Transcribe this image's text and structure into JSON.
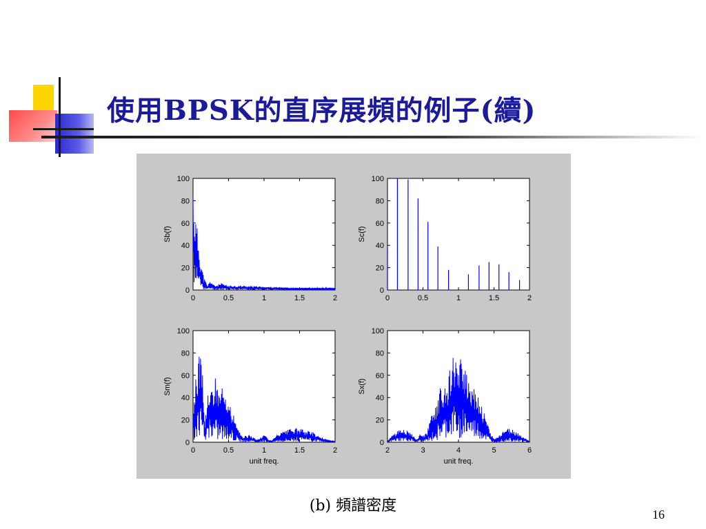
{
  "slide": {
    "title": "使用BPSK的直序展頻的例子(續)",
    "caption": "(b) 頻譜密度",
    "page_number": "16"
  },
  "colors": {
    "title": "#1a1a9a",
    "series": "#0000ff",
    "figure_background": "#c8c8c8",
    "deco_yellow": "#ffd500",
    "deco_red": "#ff5a5a",
    "deco_blue": "#3a3ad8"
  },
  "chart_data": [
    {
      "type": "line",
      "ylabel": "Sb(f)",
      "xlabel": "",
      "xlim": [
        0,
        2
      ],
      "ylim": [
        0,
        100
      ],
      "xticks": [
        "0",
        "0.5",
        "1",
        "1.5",
        "2"
      ],
      "yticks": [
        "0",
        "20",
        "40",
        "60",
        "80",
        "100"
      ],
      "envelope": {
        "x": [
          0,
          0.02,
          0.05,
          0.08,
          0.1,
          0.15,
          0.2,
          0.25,
          0.3,
          0.4,
          0.5,
          0.7,
          1.0,
          1.5,
          2.0
        ],
        "y": [
          100,
          72,
          60,
          45,
          30,
          12,
          4,
          9,
          4,
          6,
          4,
          4,
          3,
          2,
          2
        ]
      }
    },
    {
      "type": "bar",
      "ylabel": "Sc(f)",
      "xlabel": "",
      "xlim": [
        0,
        2
      ],
      "ylim": [
        0,
        100
      ],
      "xticks": [
        "0",
        "0.5",
        "1",
        "1.5",
        "2"
      ],
      "yticks": [
        "0",
        "20",
        "40",
        "60",
        "80",
        "100"
      ],
      "x": [
        0,
        0.14,
        0.29,
        0.43,
        0.57,
        0.71,
        0.86,
        1.0,
        1.14,
        1.29,
        1.43,
        1.57,
        1.71,
        1.86
      ],
      "values": [
        38,
        100,
        99,
        82,
        61,
        39,
        18,
        1,
        14,
        22,
        25,
        23,
        16,
        9
      ]
    },
    {
      "type": "line",
      "ylabel": "Sm(f)",
      "xlabel": "unit freq.",
      "xlim": [
        0,
        2
      ],
      "ylim": [
        0,
        100
      ],
      "xticks": [
        "0",
        "0.5",
        "1",
        "1.5",
        "2"
      ],
      "yticks": [
        "0",
        "20",
        "40",
        "60",
        "80",
        "100"
      ],
      "envelope": {
        "x": [
          0,
          0.03,
          0.06,
          0.1,
          0.14,
          0.17,
          0.22,
          0.3,
          0.4,
          0.5,
          0.6,
          0.7,
          0.8,
          0.9,
          1.0,
          1.1,
          1.2,
          1.3,
          1.4,
          1.5,
          1.6,
          1.7,
          1.8,
          1.9,
          2.0
        ],
        "y": [
          30,
          55,
          70,
          82,
          60,
          18,
          55,
          60,
          50,
          35,
          20,
          5,
          7,
          2,
          7,
          1,
          8,
          10,
          13,
          12,
          11,
          9,
          5,
          2,
          1
        ]
      }
    },
    {
      "type": "line",
      "ylabel": "Sx(f)",
      "xlabel": "unit freq.",
      "xlim": [
        2,
        6
      ],
      "ylim": [
        0,
        100
      ],
      "xticks": [
        "2",
        "3",
        "4",
        "5",
        "6"
      ],
      "yticks": [
        "0",
        "20",
        "40",
        "60",
        "80",
        "100"
      ],
      "envelope": {
        "x": [
          2.0,
          2.1,
          2.3,
          2.5,
          2.7,
          2.8,
          2.9,
          3.1,
          3.3,
          3.5,
          3.7,
          3.8,
          3.9,
          4.0,
          4.1,
          4.2,
          4.3,
          4.5,
          4.7,
          4.9,
          5.0,
          5.1,
          5.3,
          5.5,
          5.7,
          5.9,
          6.0
        ],
        "y": [
          1,
          5,
          11,
          12,
          8,
          2,
          7,
          8,
          30,
          50,
          60,
          70,
          84,
          62,
          84,
          70,
          60,
          50,
          30,
          8,
          3,
          5,
          12,
          12,
          8,
          3,
          1
        ]
      }
    }
  ]
}
